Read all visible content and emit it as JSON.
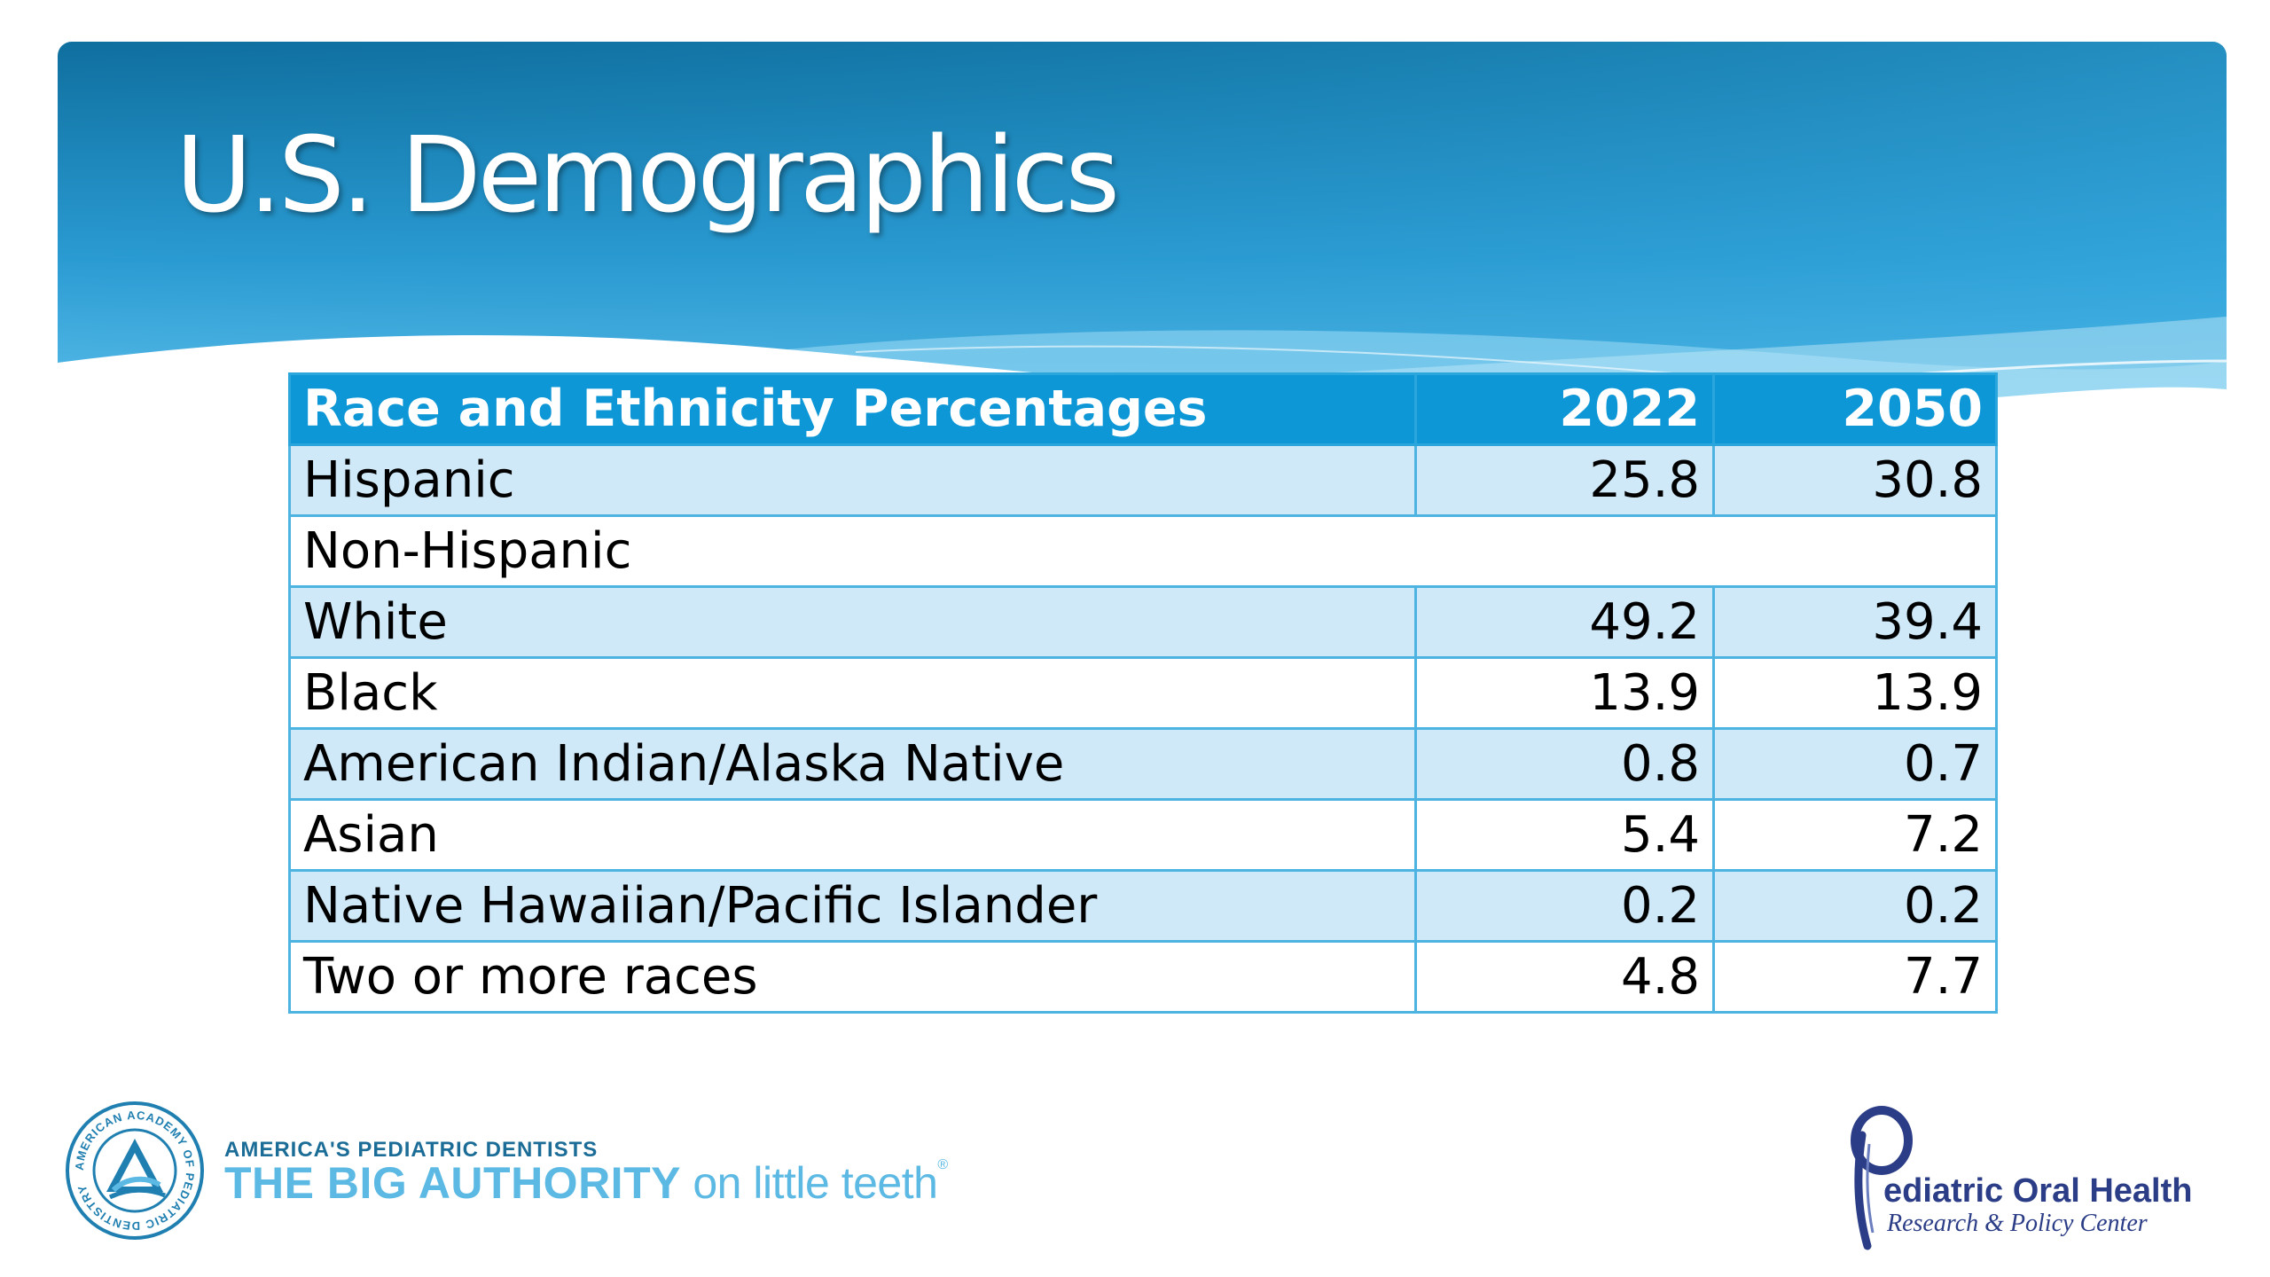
{
  "slide": {
    "title": "U.S. Demographics"
  },
  "table": {
    "headers": [
      "Race and Ethnicity Percentages",
      "2022",
      "2050"
    ],
    "rows": [
      {
        "label": "Hispanic",
        "y2022": "25.8",
        "y2050": "30.8"
      },
      {
        "label": "Non-Hispanic",
        "y2022": "",
        "y2050": ""
      },
      {
        "label": "White",
        "y2022": "49.2",
        "y2050": "39.4"
      },
      {
        "label": "Black",
        "y2022": "13.9",
        "y2050": "13.9"
      },
      {
        "label": "American Indian/Alaska Native",
        "y2022": "0.8",
        "y2050": "0.7"
      },
      {
        "label": "Asian",
        "y2022": "5.4",
        "y2050": "7.2"
      },
      {
        "label": "Native Hawaiian/Pacific Islander",
        "y2022": "0.2",
        "y2050": "0.2"
      },
      {
        "label": "Two or more races",
        "y2022": "4.8",
        "y2050": "7.7"
      }
    ]
  },
  "footer": {
    "aapd": {
      "icon": "aapd-seal-logo",
      "tagline_top": "AMERICA'S PEDIATRIC DENTISTS",
      "tagline_strong": "THE BIG AUTHORITY",
      "tagline_rest": " on little teeth",
      "trademark": "®",
      "seal_text": "AMERICAN ACADEMY OF PEDIATRIC DENTISTRY"
    },
    "pohrpc": {
      "icon": "pohrpc-p-logo",
      "name": "ediatric Oral Health",
      "subtitle": "Research & Policy Center"
    }
  },
  "colors": {
    "banner_dark": "#0f6f9f",
    "banner_light": "#4db8e6",
    "header_fill": "#0e97d6",
    "row_shade": "#cfe9f8",
    "border": "#4db3e0"
  }
}
